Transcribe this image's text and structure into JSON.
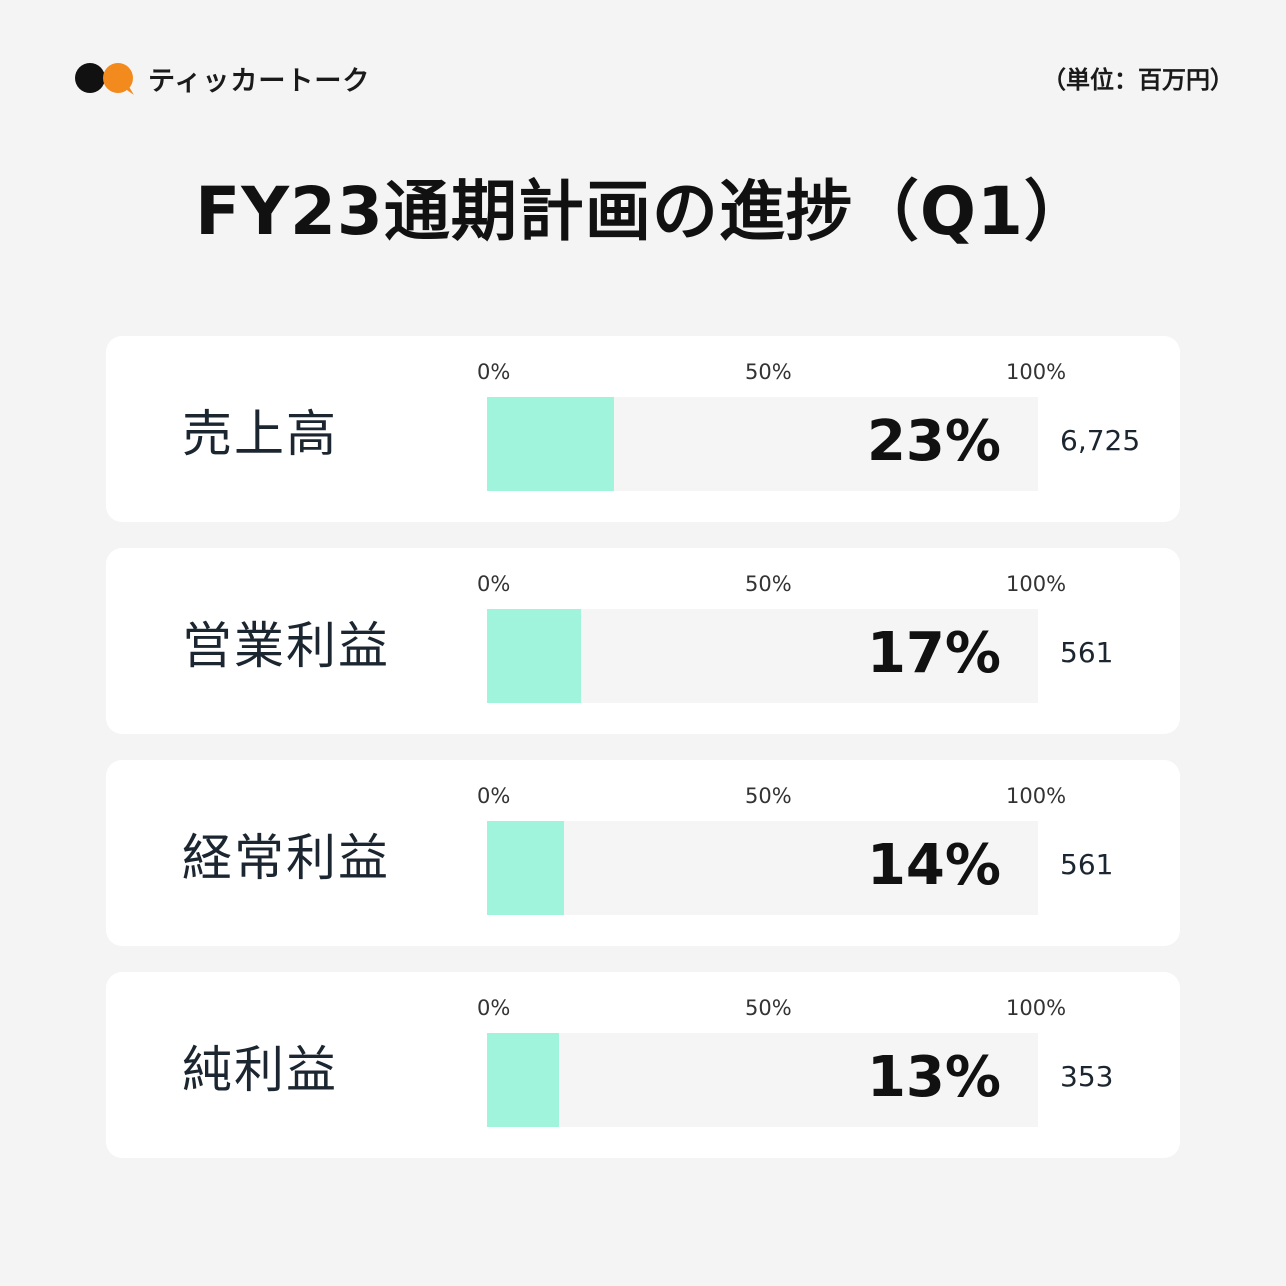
{
  "header": {
    "brand_name": "ティッカートーク",
    "unit_note": "（単位：百万円）",
    "logo_colors": {
      "dark": "#111111",
      "accent": "#f28a1e"
    }
  },
  "title": "FY23通期計画の進捗（Q1）",
  "chart_data": {
    "type": "bar",
    "title": "FY23通期計画の進捗（Q1）",
    "orientation": "horizontal",
    "xlim": [
      0,
      100
    ],
    "ticks": [
      "0%",
      "50%",
      "100%"
    ],
    "bar_color": "#a0f4dc",
    "track_color": "#f5f5f5",
    "categories": [
      "売上高",
      "営業利益",
      "経常利益",
      "純利益"
    ],
    "values": [
      23,
      17,
      14,
      13
    ],
    "value_labels": [
      "23%",
      "17%",
      "14%",
      "13%"
    ],
    "amounts": [
      "6,725",
      "561",
      "561",
      "353"
    ]
  }
}
